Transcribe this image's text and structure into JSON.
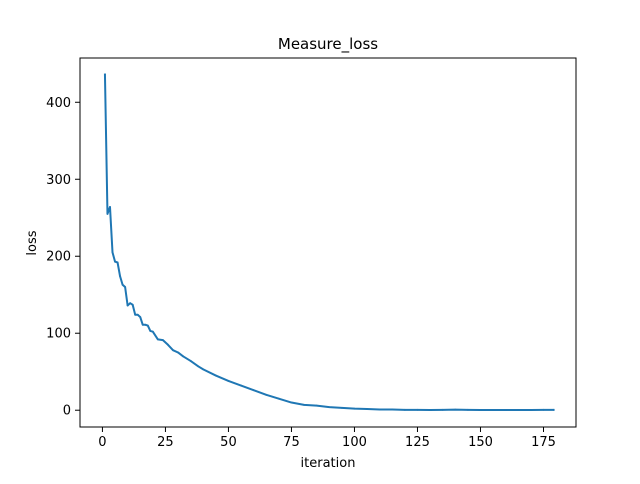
{
  "chart_data": {
    "type": "line",
    "title": "Measure_loss",
    "xlabel": "iteration",
    "ylabel": "loss",
    "xlim": [
      -8.9,
      187.9
    ],
    "ylim": [
      -21.8,
      457.5
    ],
    "x_ticks": [
      0,
      25,
      50,
      75,
      100,
      125,
      150,
      175
    ],
    "x_tick_labels": [
      "0",
      "25",
      "50",
      "75",
      "100",
      "125",
      "150",
      "175"
    ],
    "y_ticks": [
      0,
      100,
      200,
      300,
      400
    ],
    "y_tick_labels": [
      "0",
      "100",
      "200",
      "300",
      "400"
    ],
    "grid": false,
    "series": [
      {
        "color": "#1f77b4",
        "x": [
          1,
          2,
          3,
          4,
          5,
          6,
          7,
          8,
          9,
          10,
          11,
          12,
          13,
          14,
          15,
          16,
          17,
          18,
          19,
          20,
          22,
          24,
          26,
          28,
          30,
          32,
          35,
          38,
          40,
          45,
          50,
          55,
          60,
          65,
          70,
          75,
          80,
          85,
          90,
          95,
          100,
          105,
          110,
          115,
          120,
          125,
          130,
          135,
          140,
          145,
          150,
          155,
          160,
          165,
          170,
          175,
          179
        ],
        "y": [
          436,
          255,
          264,
          205,
          193,
          192,
          174,
          163,
          160,
          136,
          139,
          137,
          124,
          124,
          121,
          111,
          111,
          110,
          103,
          102,
          92,
          91,
          85,
          78,
          75,
          70,
          64,
          57,
          53,
          45,
          38,
          32,
          26,
          20,
          15,
          10,
          7,
          6,
          4,
          3,
          2,
          1.5,
          1,
          1,
          0.5,
          0.5,
          0.3,
          0.5,
          0.8,
          0.5,
          0.3,
          0.3,
          0.3,
          0.3,
          0.3,
          0.5,
          0.5
        ]
      }
    ]
  }
}
